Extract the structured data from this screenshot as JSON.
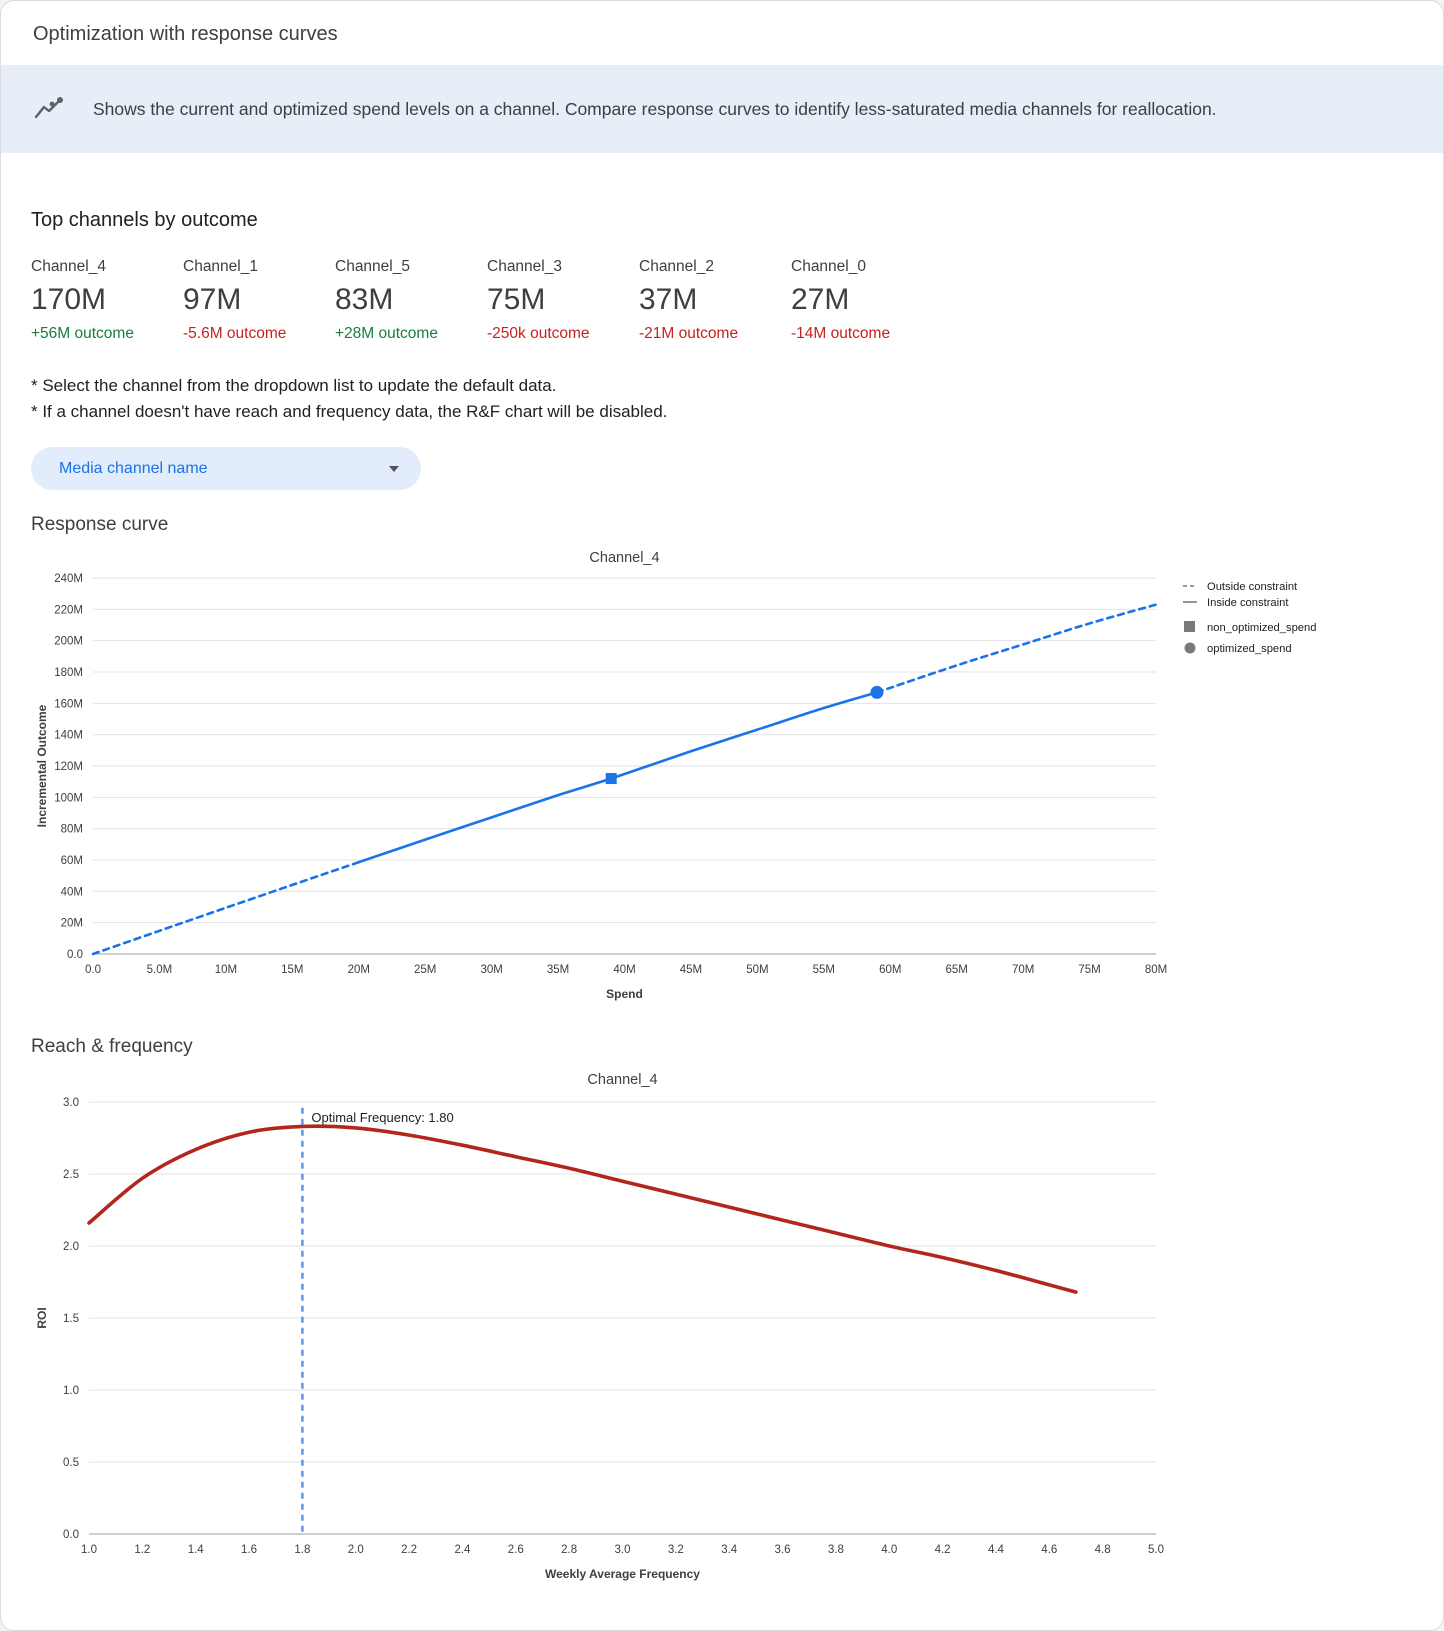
{
  "header": {
    "title": "Optimization with response curves"
  },
  "banner": {
    "icon": "trend-line-icon",
    "text": "Shows the current and optimized spend levels on a channel. Compare response curves to identify less-saturated media channels for reallocation."
  },
  "top_channels": {
    "heading": "Top channels by outcome",
    "channels": [
      {
        "name": "Channel_4",
        "value": "170M",
        "outcome": "+56M outcome",
        "direction": "positive"
      },
      {
        "name": "Channel_1",
        "value": "97M",
        "outcome": "-5.6M outcome",
        "direction": "negative"
      },
      {
        "name": "Channel_5",
        "value": "83M",
        "outcome": "+28M outcome",
        "direction": "negative2positive",
        "direction_fix": "positive"
      },
      {
        "name": "Channel_3",
        "value": "75M",
        "outcome": "-250k outcome",
        "direction": "negative"
      },
      {
        "name": "Channel_2",
        "value": "37M",
        "outcome": "-21M outcome",
        "direction": "negative"
      },
      {
        "name": "Channel_0",
        "value": "27M",
        "outcome": "-14M outcome",
        "direction": "negative"
      }
    ]
  },
  "notes": [
    "* Select the channel from the dropdown list to update the default data.",
    "* If a channel doesn't have reach and frequency data, the R&F chart will be disabled."
  ],
  "dropdown": {
    "label": "Media channel name"
  },
  "sections": {
    "response_curve": "Response curve",
    "reach_frequency": "Reach & frequency"
  },
  "colors": {
    "blue_line": "#1a73e8",
    "red_curve": "#b3261e",
    "optimal_line": "#6199f6",
    "legend_gray": "#7a7a7a",
    "grid": "#e3e3e3",
    "axis": "#9aa0a6",
    "tick_text": "#3c4043",
    "positive_green": "#188038",
    "negative_red": "#c5221f"
  },
  "chart_data": [
    {
      "type": "line",
      "title": "Channel_4",
      "xlabel": "Spend",
      "ylabel": "Incremental Outcome",
      "units": "M",
      "xlim": [
        0,
        80
      ],
      "ylim": [
        0,
        240
      ],
      "x_tick_values": [
        0,
        5,
        10,
        15,
        20,
        25,
        30,
        35,
        40,
        45,
        50,
        55,
        60,
        65,
        70,
        75,
        80
      ],
      "x_ticks": [
        "0.0",
        "5.0M",
        "10M",
        "15M",
        "20M",
        "25M",
        "30M",
        "35M",
        "40M",
        "45M",
        "50M",
        "55M",
        "60M",
        "65M",
        "70M",
        "75M",
        "80M"
      ],
      "y_tick_values": [
        0,
        20,
        40,
        60,
        80,
        100,
        120,
        140,
        160,
        180,
        200,
        220,
        240
      ],
      "y_ticks": [
        "0.0",
        "20M",
        "40M",
        "60M",
        "80M",
        "100M",
        "120M",
        "140M",
        "160M",
        "180M",
        "200M",
        "220M",
        "240M"
      ],
      "grid": "horizontal",
      "series": [
        {
          "name": "Outside constraint (below)",
          "style": "dashed",
          "x": [
            0,
            5,
            10,
            15,
            20
          ],
          "y": [
            0,
            14.8,
            29.5,
            44.1,
            58.6
          ]
        },
        {
          "name": "Inside constraint",
          "style": "solid",
          "x": [
            20,
            25,
            30,
            35,
            39,
            45,
            50,
            55,
            59
          ],
          "y": [
            58.6,
            73.0,
            87.2,
            101.4,
            112.0,
            129.4,
            143.2,
            157.0,
            167.0
          ]
        },
        {
          "name": "Outside constraint (above)",
          "style": "dashed",
          "x": [
            59,
            65,
            70,
            75,
            80
          ],
          "y": [
            167.0,
            184.2,
            197.6,
            211.0,
            223.0
          ]
        }
      ],
      "markers": [
        {
          "name": "non_optimized_spend",
          "shape": "square",
          "x": 39,
          "y": 112
        },
        {
          "name": "optimized_spend",
          "shape": "circle",
          "x": 59,
          "y": 167
        }
      ],
      "legend_position": "right",
      "legend": [
        {
          "label": "Outside constraint",
          "symbol": "dashed-line"
        },
        {
          "label": "Inside constraint",
          "symbol": "solid-line"
        },
        {
          "label": "non_optimized_spend",
          "symbol": "square"
        },
        {
          "label": "optimized_spend",
          "symbol": "circle"
        }
      ]
    },
    {
      "type": "line",
      "title": "Channel_4",
      "xlabel": "Weekly Average Frequency",
      "ylabel": "ROI",
      "xlim": [
        1.0,
        5.0
      ],
      "ylim": [
        0,
        3.0
      ],
      "x_tick_values": [
        1.0,
        1.2,
        1.4,
        1.6,
        1.8,
        2.0,
        2.2,
        2.4,
        2.6,
        2.8,
        3.0,
        3.2,
        3.4,
        3.6,
        3.8,
        4.0,
        4.2,
        4.4,
        4.6,
        4.8,
        5.0
      ],
      "x_ticks": [
        "1.0",
        "1.2",
        "1.4",
        "1.6",
        "1.8",
        "2.0",
        "2.2",
        "2.4",
        "2.6",
        "2.8",
        "3.0",
        "3.2",
        "3.4",
        "3.6",
        "3.8",
        "4.0",
        "4.2",
        "4.4",
        "4.6",
        "4.8",
        "5.0"
      ],
      "y_tick_values": [
        0,
        0.5,
        1.0,
        1.5,
        2.0,
        2.5,
        3.0
      ],
      "y_ticks": [
        "0.0",
        "0.5",
        "1.0",
        "1.5",
        "2.0",
        "2.5",
        "3.0"
      ],
      "grid": "horizontal",
      "optimal_frequency": 1.8,
      "annotation": "Optimal Frequency: 1.80",
      "series": [
        {
          "name": "ROI curve",
          "style": "solid",
          "x": [
            1.0,
            1.2,
            1.4,
            1.6,
            1.8,
            2.0,
            2.2,
            2.4,
            2.6,
            2.8,
            3.0,
            3.2,
            3.4,
            3.6,
            3.8,
            4.0,
            4.2,
            4.4,
            4.6,
            4.7
          ],
          "y": [
            2.16,
            2.47,
            2.67,
            2.79,
            2.83,
            2.82,
            2.77,
            2.7,
            2.62,
            2.54,
            2.45,
            2.36,
            2.27,
            2.18,
            2.09,
            2.0,
            1.92,
            1.83,
            1.73,
            1.68
          ]
        }
      ]
    }
  ]
}
